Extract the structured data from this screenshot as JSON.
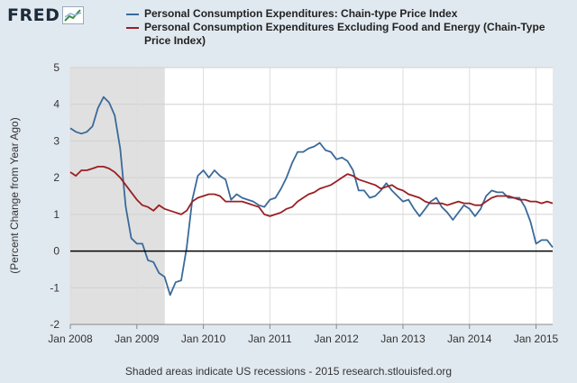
{
  "brand": {
    "name": "FRED"
  },
  "colors": {
    "series1": "#3a6a9a",
    "series2": "#9a1f23",
    "plot_bg": "#ffffff",
    "recession": "#e0e0e0",
    "page_bg": "#e1e9f0"
  },
  "caption": "Shaded areas indicate US recessions - 2015 research.stlouisfed.org",
  "chart_data": {
    "type": "line",
    "title": "",
    "xlabel": "",
    "ylabel": "(Percent Change from Year Ago)",
    "xlim": [
      2008.0,
      2015.25
    ],
    "ylim": [
      -2,
      5
    ],
    "yticks": [
      -2,
      -1,
      0,
      1,
      2,
      3,
      4,
      5
    ],
    "xticks": [
      {
        "value": 2008,
        "label": "Jan 2008"
      },
      {
        "value": 2009,
        "label": "Jan 2009"
      },
      {
        "value": 2010,
        "label": "Jan 2010"
      },
      {
        "value": 2011,
        "label": "Jan 2011"
      },
      {
        "value": 2012,
        "label": "Jan 2012"
      },
      {
        "value": 2013,
        "label": "Jan 2013"
      },
      {
        "value": 2014,
        "label": "Jan 2014"
      },
      {
        "value": 2015,
        "label": "Jan 2015"
      }
    ],
    "recessions": [
      [
        2008.0,
        2009.42
      ]
    ],
    "zero_line": true,
    "x_start": 2008.0,
    "x_step_months": 1,
    "series": [
      {
        "name": "Personal Consumption Expenditures: Chain-type Price Index",
        "color": "#3a6a9a",
        "values": [
          3.35,
          3.25,
          3.2,
          3.25,
          3.4,
          3.9,
          4.2,
          4.05,
          3.7,
          2.8,
          1.2,
          0.35,
          0.2,
          0.2,
          -0.25,
          -0.3,
          -0.6,
          -0.7,
          -1.2,
          -0.85,
          -0.8,
          0.1,
          1.4,
          2.05,
          2.2,
          2.0,
          2.2,
          2.05,
          1.95,
          1.4,
          1.55,
          1.45,
          1.4,
          1.35,
          1.25,
          1.2,
          1.4,
          1.45,
          1.7,
          2.0,
          2.4,
          2.7,
          2.7,
          2.8,
          2.85,
          2.95,
          2.75,
          2.7,
          2.5,
          2.55,
          2.45,
          2.2,
          1.65,
          1.65,
          1.45,
          1.5,
          1.65,
          1.85,
          1.65,
          1.5,
          1.35,
          1.4,
          1.15,
          0.95,
          1.15,
          1.35,
          1.45,
          1.2,
          1.05,
          0.85,
          1.05,
          1.25,
          1.15,
          0.95,
          1.15,
          1.5,
          1.65,
          1.6,
          1.6,
          1.45,
          1.45,
          1.45,
          1.2,
          0.8,
          0.2,
          0.3,
          0.3,
          0.1
        ]
      },
      {
        "name": "Personal Consumption Expenditures Excluding Food and Energy (Chain-Type Price Index)",
        "color": "#9a1f23",
        "values": [
          2.15,
          2.05,
          2.2,
          2.2,
          2.25,
          2.3,
          2.3,
          2.25,
          2.15,
          2.0,
          1.8,
          1.6,
          1.4,
          1.25,
          1.2,
          1.1,
          1.25,
          1.15,
          1.1,
          1.05,
          1.0,
          1.1,
          1.35,
          1.45,
          1.5,
          1.55,
          1.55,
          1.5,
          1.35,
          1.35,
          1.35,
          1.35,
          1.3,
          1.25,
          1.2,
          1.0,
          0.95,
          1.0,
          1.05,
          1.15,
          1.2,
          1.35,
          1.45,
          1.55,
          1.6,
          1.7,
          1.75,
          1.8,
          1.9,
          2.0,
          2.1,
          2.05,
          1.95,
          1.9,
          1.85,
          1.8,
          1.7,
          1.75,
          1.8,
          1.7,
          1.65,
          1.55,
          1.5,
          1.45,
          1.35,
          1.3,
          1.3,
          1.3,
          1.25,
          1.3,
          1.35,
          1.3,
          1.3,
          1.25,
          1.25,
          1.35,
          1.45,
          1.5,
          1.5,
          1.5,
          1.45,
          1.4,
          1.4,
          1.35,
          1.35,
          1.3,
          1.35,
          1.3
        ]
      }
    ]
  }
}
